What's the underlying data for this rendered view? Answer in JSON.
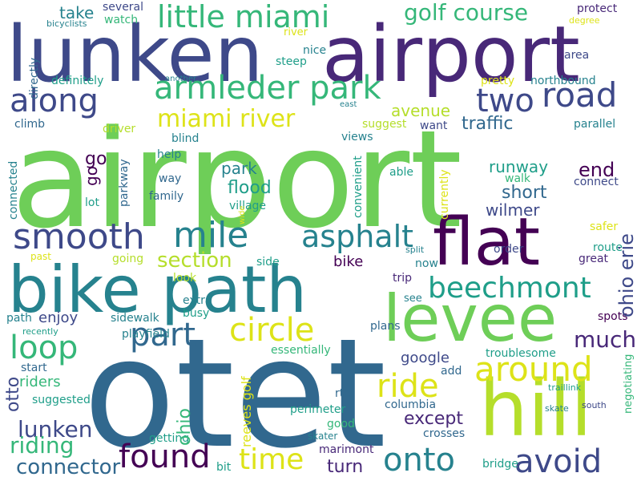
{
  "colors": {
    "background": "#ffffff",
    "yellow": "#dde318",
    "lime": "#b5de2b",
    "green": "#6ece58",
    "emerald": "#35b779",
    "teal": "#1f9e89",
    "steel": "#26828e",
    "blue": "#31688e",
    "indigo": "#3e4989",
    "violet": "#482878",
    "darkpurple": "#440154"
  },
  "words": {
    "airport_main": "airport",
    "otet": "otet",
    "lunken": "lunken",
    "airport_top": "airport",
    "bike_path": "bike path",
    "levee": "levee",
    "hill": "hill",
    "flat": "flat",
    "little_miami": "little miami",
    "armleder_park": "armleder park",
    "miami_river": "miami river",
    "golf_course": "golf course",
    "along": "along",
    "two": "two",
    "road": "road",
    "smooth": "smooth",
    "mile": "mile",
    "asphalt": "asphalt",
    "part": "part",
    "circle": "circle",
    "loop": "loop",
    "around": "around",
    "beechmont": "beechmont",
    "ride": "ride",
    "found": "found",
    "time": "time",
    "onto": "onto",
    "avoid": "avoid",
    "much": "much",
    "lunken_small": "lunken",
    "riding": "riding",
    "connector": "connector",
    "section": "section",
    "except": "except",
    "turn": "turn",
    "go": "go",
    "ohio_erie": "ohio erie",
    "end": "end",
    "short": "short",
    "wilmer": "wilmer",
    "runway": "runway",
    "flood": "flood",
    "park": "park",
    "traffic": "traffic",
    "avenue": "avenue",
    "take": "take",
    "several": "several",
    "watch": "watch",
    "bicyclists": "bicyclists",
    "directly": "directly",
    "nice": "nice",
    "steep": "steep",
    "river": "river",
    "definitely": "definitely",
    "another": "another",
    "climb": "climb",
    "driver": "driver",
    "blind": "blind",
    "help": "help",
    "way": "way",
    "family": "family",
    "lot": "lot",
    "parkway": "parkway",
    "connected": "connected",
    "village": "village",
    "wide": "wide",
    "past": "past",
    "going": "going",
    "look": "look",
    "side": "side",
    "bike": "bike",
    "split": "split",
    "now": "now",
    "trip": "trip",
    "see": "see",
    "plans": "plans",
    "extra": "extra",
    "busy": "busy",
    "enjoy": "enjoy",
    "sidewalk": "sidewalk",
    "path": "path",
    "recently": "recently",
    "playfield": "playfield",
    "essentially": "essentially",
    "start": "start",
    "riders": "riders",
    "suggested": "suggested",
    "otto": "otto",
    "ohio": "ohio",
    "reeves_golf": "reeves golf",
    "getting": "getting",
    "bit": "bit",
    "good": "good",
    "perimeter": "perimeter",
    "rte": "rte",
    "skater": "skater",
    "marimont": "marimont",
    "columbia": "columbia",
    "crosses": "crosses",
    "bridge": "bridge",
    "google": "google",
    "add": "add",
    "troublesome": "troublesome",
    "traillink": "traillink",
    "skate": "skate",
    "south": "south",
    "negotiating": "negotiating",
    "spots": "spots",
    "great": "great",
    "route": "route",
    "safer": "safer",
    "order": "order",
    "walk": "walk",
    "currently": "currently",
    "convenient": "convenient",
    "able": "able",
    "views": "views",
    "connect": "connect",
    "parallel": "parallel",
    "want": "want",
    "suggest": "suggest",
    "east": "east",
    "pretty": "pretty",
    "northbound": "northbound",
    "area": "area",
    "protect": "protect",
    "degree": "degree"
  }
}
